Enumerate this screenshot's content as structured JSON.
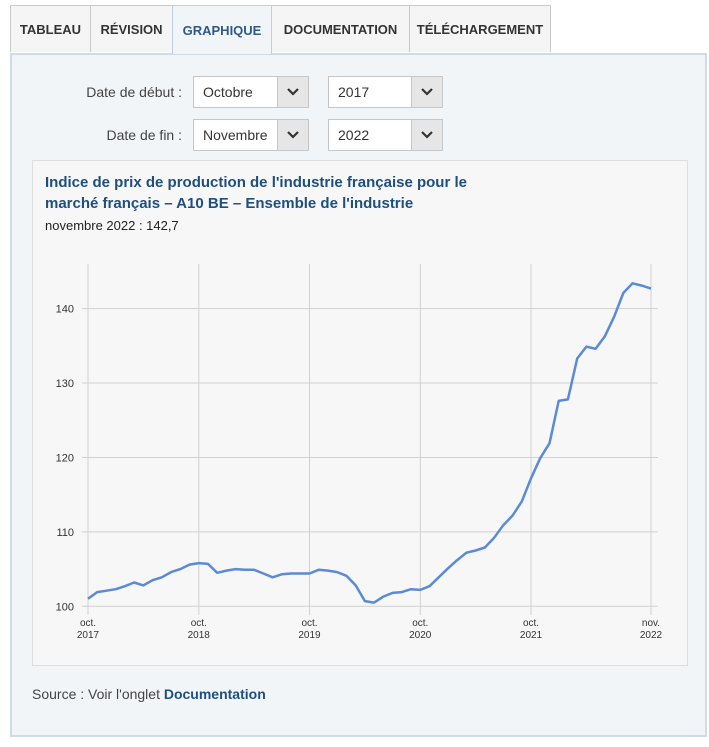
{
  "tabs": [
    "TABLEAU",
    "RÉVISION",
    "GRAPHIQUE",
    "DOCUMENTATION",
    "TÉLÉCHARGEMENT"
  ],
  "active_tab": "GRAPHIQUE",
  "filters": {
    "start_label": "Date de début :",
    "start_month": "Octobre",
    "start_year": "2017",
    "end_label": "Date de fin :",
    "end_month": "Novembre",
    "end_year": "2022"
  },
  "source": {
    "prefix": "Source : Voir l'onglet ",
    "link": "Documentation"
  },
  "colors": {
    "line": "#5b8ad6",
    "title": "#1f4f7f",
    "grid": "#d0d0d0"
  },
  "chart_data": {
    "type": "line",
    "title_lines": [
      "Indice de prix de production de l'industrie française pour le",
      "marché français – A10 BE – Ensemble de l'industrie"
    ],
    "subtitle": "novembre 2022 : 142,7",
    "xlabel": "",
    "ylabel": "",
    "ylim": [
      99.5,
      146
    ],
    "yticks": [
      100,
      110,
      120,
      130,
      140
    ],
    "ytick_labels": [
      "100",
      "110",
      "120",
      "130",
      "140"
    ],
    "xticks": [
      {
        "idx": 0,
        "line1": "oct.",
        "line2": "2017"
      },
      {
        "idx": 12,
        "line1": "oct.",
        "line2": "2018"
      },
      {
        "idx": 24,
        "line1": "oct.",
        "line2": "2019"
      },
      {
        "idx": 36,
        "line1": "oct.",
        "line2": "2020"
      },
      {
        "idx": 48,
        "line1": "oct.",
        "line2": "2021"
      },
      {
        "idx": 61,
        "line1": "nov.",
        "line2": "2022"
      }
    ],
    "grid": true,
    "legend": "none",
    "series": [
      {
        "x_start": "2017-10",
        "x_end": "2022-11",
        "frequency": "monthly",
        "values": [
          101.0,
          101.9,
          102.1,
          102.3,
          102.7,
          103.2,
          102.8,
          103.5,
          103.9,
          104.6,
          105.0,
          105.6,
          105.8,
          105.7,
          104.5,
          104.8,
          105.0,
          104.9,
          104.9,
          104.4,
          103.9,
          104.3,
          104.4,
          104.4,
          104.4,
          104.9,
          104.8,
          104.6,
          104.1,
          102.8,
          100.7,
          100.5,
          101.3,
          101.8,
          101.9,
          102.3,
          102.2,
          102.7,
          103.9,
          105.1,
          106.2,
          107.2,
          107.5,
          107.9,
          109.2,
          110.9,
          112.2,
          114.1,
          117.2,
          119.9,
          121.9,
          127.6,
          127.8,
          133.3,
          134.9,
          134.6,
          136.3,
          138.9,
          142.1,
          143.4,
          143.1,
          142.7
        ]
      }
    ]
  }
}
